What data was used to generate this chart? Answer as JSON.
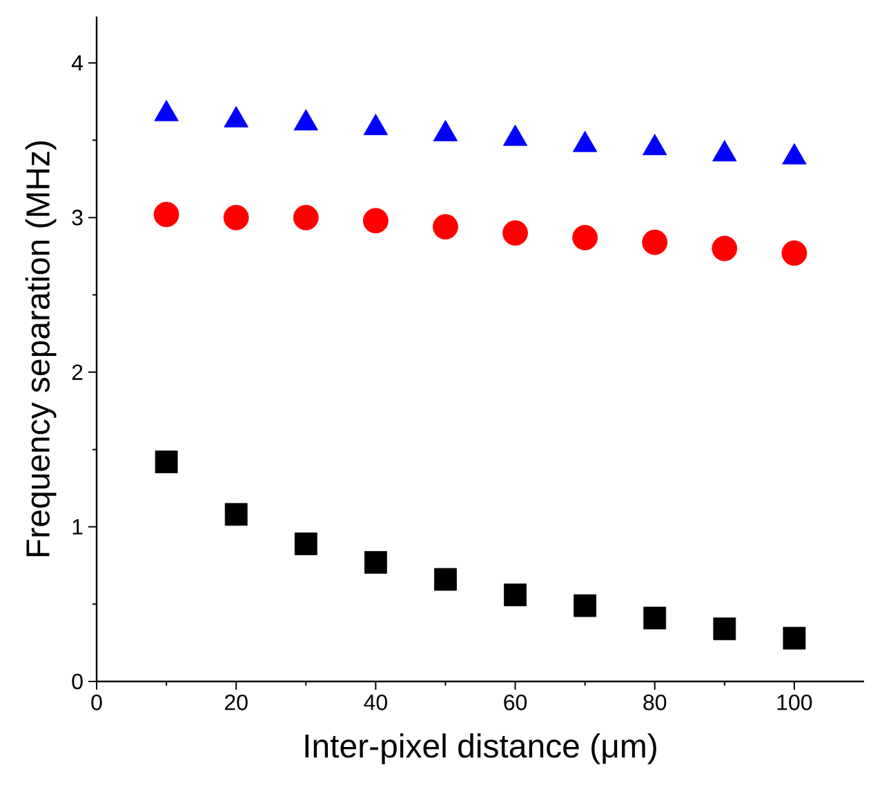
{
  "chart_data": {
    "type": "scatter",
    "xlabel": "Inter-pixel distance (μm)",
    "ylabel": "Frequency separation (MHz)",
    "x": [
      10,
      20,
      30,
      40,
      50,
      60,
      70,
      80,
      90,
      100
    ],
    "series": [
      {
        "color": "#0000ff",
        "marker": "triangle",
        "values": [
          3.67,
          3.63,
          3.61,
          3.58,
          3.54,
          3.51,
          3.47,
          3.45,
          3.41,
          3.39
        ]
      },
      {
        "color": "#ff0000",
        "marker": "circle",
        "values": [
          3.02,
          3.0,
          3.0,
          2.98,
          2.94,
          2.9,
          2.87,
          2.84,
          2.8,
          2.77
        ]
      },
      {
        "color": "#000000",
        "marker": "square",
        "values": [
          1.42,
          1.08,
          0.89,
          0.77,
          0.66,
          0.56,
          0.49,
          0.41,
          0.34,
          0.28
        ]
      }
    ],
    "xlim": [
      0,
      110
    ],
    "ylim": [
      0,
      4.3
    ],
    "xticks": [
      0,
      20,
      40,
      60,
      80,
      100
    ],
    "yticks": [
      0,
      1,
      2,
      3,
      4
    ],
    "grid": false
  }
}
